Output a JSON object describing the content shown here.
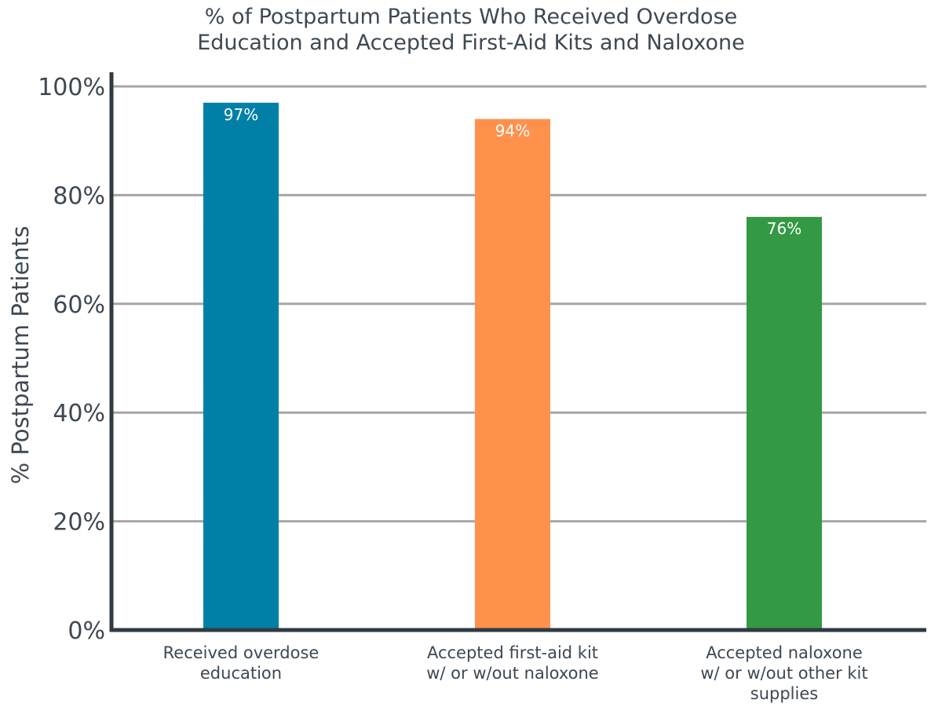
{
  "chart_data": {
    "type": "bar",
    "title_lines": [
      "% of Postpartum Patients Who Received Overdose",
      "Education and Accepted First-Aid Kits and Naloxone"
    ],
    "ylabel": "% Postpartum Patients",
    "xlabel": "",
    "ylim": [
      0,
      100
    ],
    "yticks": [
      "0%",
      "20%",
      "40%",
      "60%",
      "80%",
      "100%"
    ],
    "grid": true,
    "categories": [
      [
        "Received overdose",
        "education"
      ],
      [
        "Accepted first-aid kit",
        "w/ or w/out naloxone"
      ],
      [
        "Accepted naloxone",
        "w/ or w/out other kit",
        "supplies"
      ]
    ],
    "values": [
      97,
      94,
      76
    ],
    "data_labels": [
      "97%",
      "94%",
      "76%"
    ],
    "colors": [
      "#0080a6",
      "#ff914d",
      "#339944"
    ]
  }
}
